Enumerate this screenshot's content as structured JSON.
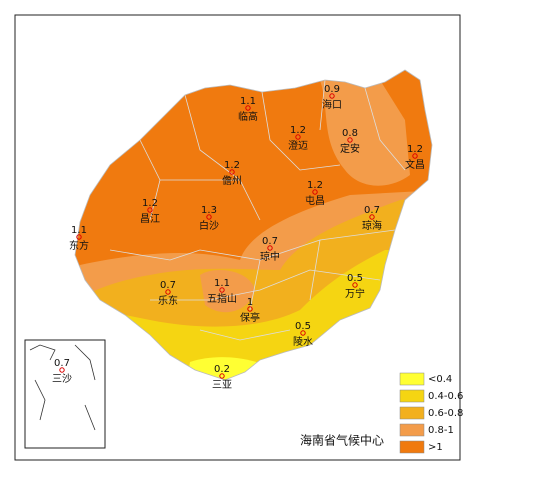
{
  "map": {
    "stations": [
      {
        "name": "海口",
        "value": 0.9
      },
      {
        "name": "临高",
        "value": 1.1
      },
      {
        "name": "文昌",
        "value": 1.2
      },
      {
        "name": "澄迈",
        "value": 1.2
      },
      {
        "name": "定安",
        "value": 0.8
      },
      {
        "name": "儋州",
        "value": 1.2
      },
      {
        "name": "屯昌",
        "value": 1.2
      },
      {
        "name": "昌江",
        "value": 1.2
      },
      {
        "name": "白沙",
        "value": 1.3
      },
      {
        "name": "琼海",
        "value": 0.7
      },
      {
        "name": "东方",
        "value": 1.1
      },
      {
        "name": "琼中",
        "value": 0.7
      },
      {
        "name": "乐东",
        "value": 0.7
      },
      {
        "name": "五指山",
        "value": 1.1
      },
      {
        "name": "万宁",
        "value": 0.5
      },
      {
        "name": "保亭",
        "value": 1
      },
      {
        "name": "陵水",
        "value": 0.5
      },
      {
        "name": "三亚",
        "value": 0.2
      },
      {
        "name": "三沙",
        "value": 0.7
      }
    ],
    "legend": [
      {
        "label": "<0.4",
        "color": "#ffff33"
      },
      {
        "label": "0.4-0.6",
        "color": "#f5d512"
      },
      {
        "label": "0.6-0.8",
        "color": "#f2b01e"
      },
      {
        "label": "0.8-1",
        "color": "#f39c4a"
      },
      {
        "label": ">1",
        "color": "#f07a0f"
      }
    ],
    "source": "海南省气候中心"
  }
}
